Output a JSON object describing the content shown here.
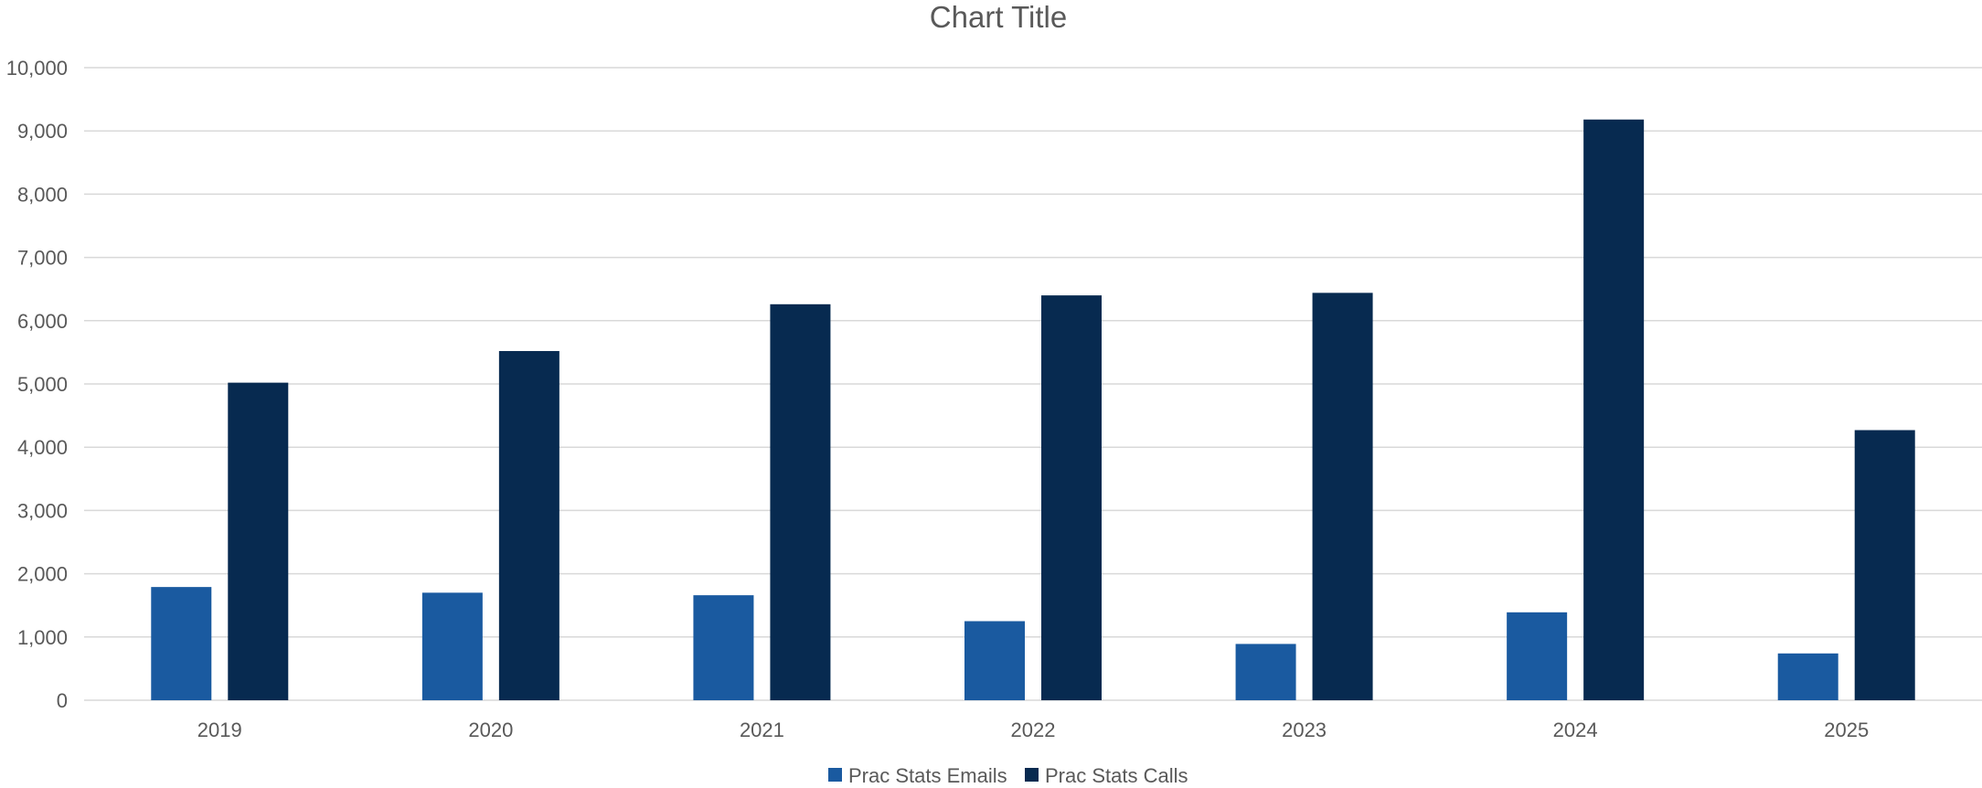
{
  "chart_data": {
    "type": "bar",
    "title": "Chart Title",
    "xlabel": "",
    "ylabel": "",
    "categories": [
      "2019",
      "2020",
      "2021",
      "2022",
      "2023",
      "2024",
      "2025"
    ],
    "series": [
      {
        "name": "Prac Stats Emails",
        "color": "#1a5aa0",
        "values": [
          1790,
          1700,
          1660,
          1250,
          890,
          1390,
          740
        ]
      },
      {
        "name": "Prac Stats Calls",
        "color": "#072a50",
        "values": [
          5020,
          5520,
          6260,
          6400,
          6440,
          9180,
          4270
        ]
      }
    ],
    "ylim": [
      0,
      10000
    ],
    "yticks": [
      0,
      1000,
      2000,
      3000,
      4000,
      5000,
      6000,
      7000,
      8000,
      9000,
      10000
    ],
    "ytick_labels": [
      "0",
      "1,000",
      "2,000",
      "3,000",
      "4,000",
      "5,000",
      "6,000",
      "7,000",
      "8,000",
      "9,000",
      "10,000"
    ],
    "grid": true,
    "legend_position": "bottom"
  }
}
